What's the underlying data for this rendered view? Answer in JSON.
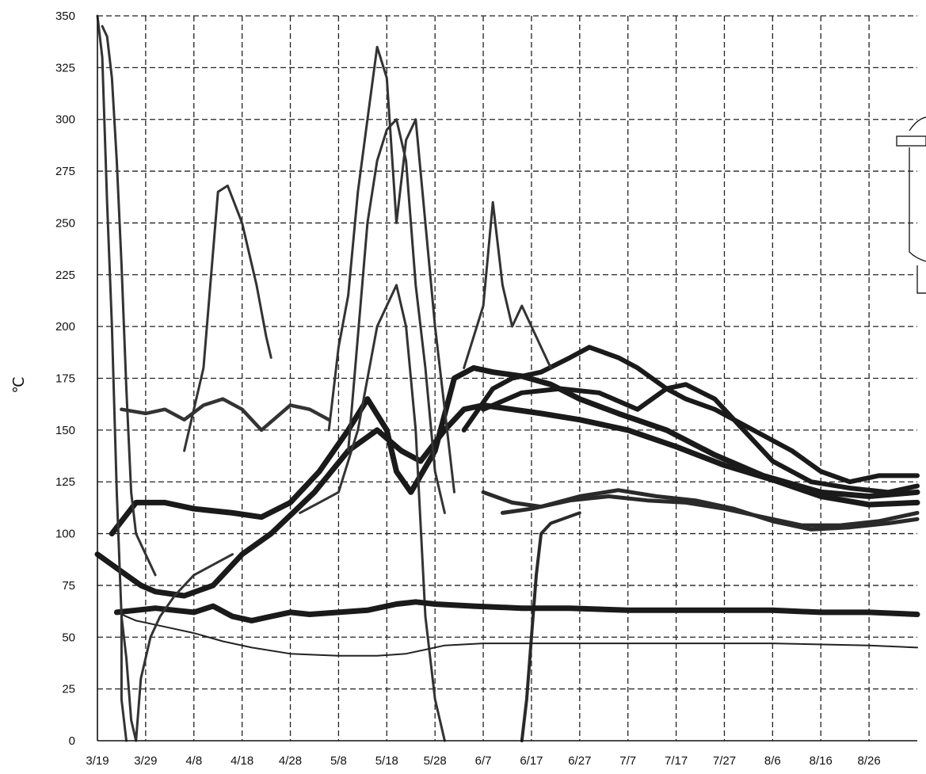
{
  "chart_data": {
    "type": "line",
    "ylabel": "℃",
    "ylim": [
      0,
      350
    ],
    "yticks": [
      0,
      25,
      50,
      75,
      100,
      125,
      150,
      175,
      200,
      225,
      250,
      275,
      300,
      325,
      350
    ],
    "x_tick_labels": [
      "3/19",
      "3/29",
      "4/8",
      "4/18",
      "4/28",
      "5/8",
      "5/18",
      "5/28",
      "6/7",
      "6/17",
      "6/27",
      "7/7",
      "7/17",
      "7/27",
      "8/6",
      "8/16",
      "8/26"
    ],
    "xlim_days": [
      0,
      170
    ],
    "grid": true,
    "series": [
      {
        "color": "#1a1a1a",
        "width": 7,
        "points": [
          [
            0,
            90
          ],
          [
            3,
            85
          ],
          [
            6,
            80
          ],
          [
            9,
            75
          ],
          [
            12,
            72
          ],
          [
            18,
            70
          ],
          [
            24,
            75
          ],
          [
            30,
            90
          ],
          [
            36,
            100
          ],
          [
            45,
            120
          ],
          [
            52,
            140
          ],
          [
            58,
            150
          ],
          [
            63,
            140
          ],
          [
            67,
            135
          ],
          [
            72,
            150
          ],
          [
            76,
            160
          ],
          [
            80,
            162
          ],
          [
            86,
            160
          ],
          [
            92,
            158
          ],
          [
            100,
            155
          ],
          [
            110,
            150
          ],
          [
            120,
            142
          ],
          [
            130,
            133
          ],
          [
            140,
            126
          ],
          [
            150,
            118
          ],
          [
            160,
            114
          ],
          [
            170,
            115
          ]
        ]
      },
      {
        "color": "#1a1a1a",
        "width": 7,
        "points": [
          [
            3,
            100
          ],
          [
            8,
            115
          ],
          [
            14,
            115
          ],
          [
            20,
            112
          ],
          [
            28,
            110
          ],
          [
            34,
            108
          ],
          [
            40,
            115
          ],
          [
            46,
            130
          ],
          [
            52,
            150
          ],
          [
            56,
            165
          ],
          [
            60,
            150
          ],
          [
            62,
            130
          ],
          [
            65,
            120
          ],
          [
            70,
            140
          ],
          [
            74,
            175
          ],
          [
            78,
            180
          ],
          [
            82,
            178
          ],
          [
            88,
            176
          ],
          [
            94,
            172
          ],
          [
            100,
            165
          ],
          [
            108,
            158
          ],
          [
            118,
            150
          ],
          [
            128,
            138
          ],
          [
            138,
            128
          ],
          [
            150,
            120
          ],
          [
            160,
            118
          ],
          [
            170,
            120
          ]
        ]
      },
      {
        "color": "#1a1a1a",
        "width": 6,
        "points": [
          [
            76,
            150
          ],
          [
            82,
            170
          ],
          [
            86,
            175
          ],
          [
            92,
            178
          ],
          [
            98,
            185
          ],
          [
            102,
            190
          ],
          [
            108,
            185
          ],
          [
            112,
            180
          ],
          [
            118,
            170
          ],
          [
            122,
            165
          ],
          [
            128,
            160
          ],
          [
            136,
            150
          ],
          [
            144,
            140
          ],
          [
            150,
            130
          ],
          [
            156,
            125
          ],
          [
            162,
            128
          ],
          [
            170,
            128
          ]
        ]
      },
      {
        "color": "#1a1a1a",
        "width": 6,
        "points": [
          [
            80,
            160
          ],
          [
            88,
            168
          ],
          [
            96,
            170
          ],
          [
            104,
            168
          ],
          [
            112,
            160
          ],
          [
            118,
            170
          ],
          [
            122,
            172
          ],
          [
            128,
            165
          ],
          [
            134,
            150
          ],
          [
            140,
            135
          ],
          [
            148,
            125
          ],
          [
            156,
            122
          ],
          [
            164,
            120
          ],
          [
            170,
            123
          ]
        ]
      },
      {
        "color": "#2a2a2a",
        "width": 5,
        "points": [
          [
            80,
            120
          ],
          [
            86,
            115
          ],
          [
            92,
            113
          ],
          [
            100,
            118
          ],
          [
            108,
            121
          ],
          [
            116,
            118
          ],
          [
            124,
            116
          ],
          [
            132,
            112
          ],
          [
            140,
            106
          ],
          [
            148,
            102
          ],
          [
            156,
            103
          ],
          [
            164,
            105
          ],
          [
            170,
            107
          ]
        ]
      },
      {
        "color": "#2a2a2a",
        "width": 5,
        "points": [
          [
            84,
            110
          ],
          [
            90,
            112
          ],
          [
            98,
            116
          ],
          [
            106,
            118
          ],
          [
            114,
            116
          ],
          [
            122,
            115
          ],
          [
            130,
            112
          ],
          [
            138,
            108
          ],
          [
            146,
            104
          ],
          [
            154,
            104
          ],
          [
            162,
            106
          ],
          [
            170,
            110
          ]
        ]
      },
      {
        "color": "#333333",
        "width": 4.5,
        "points": [
          [
            5,
            160
          ],
          [
            10,
            158
          ],
          [
            14,
            160
          ],
          [
            18,
            155
          ],
          [
            22,
            162
          ],
          [
            26,
            165
          ],
          [
            30,
            160
          ],
          [
            34,
            150
          ],
          [
            38,
            158
          ],
          [
            40,
            162
          ],
          [
            44,
            160
          ],
          [
            48,
            155
          ]
        ]
      },
      {
        "color": "#333333",
        "width": 3,
        "points": [
          [
            18,
            140
          ],
          [
            22,
            180
          ],
          [
            25,
            265
          ],
          [
            27,
            268
          ],
          [
            30,
            250
          ],
          [
            33,
            220
          ],
          [
            35,
            195
          ],
          [
            36,
            185
          ]
        ]
      },
      {
        "color": "#333333",
        "width": 3,
        "points": [
          [
            48,
            150
          ],
          [
            50,
            190
          ],
          [
            52,
            215
          ],
          [
            54,
            265
          ],
          [
            56,
            300
          ],
          [
            58,
            335
          ],
          [
            60,
            320
          ],
          [
            62,
            250
          ],
          [
            64,
            290
          ],
          [
            66,
            300
          ],
          [
            68,
            250
          ],
          [
            70,
            200
          ],
          [
            72,
            160
          ],
          [
            74,
            120
          ]
        ]
      },
      {
        "color": "#333333",
        "width": 3,
        "points": [
          [
            52,
            140
          ],
          [
            56,
            250
          ],
          [
            58,
            280
          ],
          [
            60,
            295
          ],
          [
            62,
            300
          ],
          [
            64,
            280
          ],
          [
            66,
            220
          ],
          [
            68,
            180
          ],
          [
            70,
            130
          ],
          [
            72,
            110
          ]
        ]
      },
      {
        "color": "#333333",
        "width": 3,
        "points": [
          [
            42,
            110
          ],
          [
            46,
            115
          ],
          [
            50,
            120
          ],
          [
            54,
            150
          ],
          [
            58,
            200
          ],
          [
            62,
            220
          ],
          [
            64,
            200
          ],
          [
            66,
            150
          ],
          [
            68,
            60
          ],
          [
            70,
            20
          ],
          [
            72,
            0
          ]
        ]
      },
      {
        "color": "#333333",
        "width": 3,
        "points": [
          [
            76,
            180
          ],
          [
            80,
            210
          ],
          [
            82,
            260
          ],
          [
            84,
            220
          ],
          [
            86,
            200
          ],
          [
            88,
            210
          ],
          [
            92,
            190
          ],
          [
            94,
            180
          ]
        ]
      },
      {
        "color": "#2a2a2a",
        "width": 4,
        "points": [
          [
            88,
            0
          ],
          [
            89,
            20
          ],
          [
            90,
            50
          ],
          [
            91,
            80
          ],
          [
            92,
            100
          ],
          [
            94,
            105
          ],
          [
            100,
            110
          ]
        ]
      },
      {
        "color": "#1a1a1a",
        "width": 7,
        "points": [
          [
            4,
            62
          ],
          [
            8,
            63
          ],
          [
            12,
            64
          ],
          [
            16,
            63
          ],
          [
            20,
            62
          ],
          [
            24,
            65
          ],
          [
            28,
            60
          ],
          [
            32,
            58
          ],
          [
            36,
            60
          ],
          [
            40,
            62
          ],
          [
            44,
            61
          ],
          [
            50,
            62
          ],
          [
            56,
            63
          ],
          [
            62,
            66
          ],
          [
            66,
            67
          ],
          [
            70,
            66
          ],
          [
            78,
            65
          ],
          [
            88,
            64
          ],
          [
            98,
            64
          ],
          [
            110,
            63
          ],
          [
            120,
            63
          ],
          [
            130,
            63
          ],
          [
            140,
            63
          ],
          [
            150,
            62
          ],
          [
            160,
            62
          ],
          [
            170,
            61
          ]
        ]
      },
      {
        "color": "#222222",
        "width": 2,
        "points": [
          [
            4,
            62
          ],
          [
            8,
            58
          ],
          [
            14,
            55
          ],
          [
            20,
            52
          ],
          [
            26,
            48
          ],
          [
            32,
            45
          ],
          [
            40,
            42
          ],
          [
            50,
            41
          ],
          [
            58,
            41
          ],
          [
            64,
            42
          ],
          [
            68,
            44
          ],
          [
            72,
            46
          ],
          [
            80,
            47
          ],
          [
            100,
            47
          ],
          [
            120,
            47
          ],
          [
            140,
            47
          ],
          [
            160,
            46
          ],
          [
            170,
            45
          ]
        ]
      },
      {
        "color": "#333333",
        "width": 3,
        "points": [
          [
            0,
            350
          ],
          [
            1,
            330
          ],
          [
            2,
            260
          ],
          [
            3,
            200
          ],
          [
            4,
            120
          ],
          [
            5,
            60
          ],
          [
            5,
            20
          ],
          [
            6,
            0
          ]
        ]
      },
      {
        "color": "#333333",
        "width": 3,
        "points": [
          [
            1,
            345
          ],
          [
            2,
            340
          ],
          [
            3,
            320
          ],
          [
            4,
            280
          ],
          [
            5,
            230
          ],
          [
            6,
            170
          ],
          [
            7,
            120
          ],
          [
            8,
            100
          ],
          [
            10,
            90
          ],
          [
            12,
            80
          ]
        ]
      },
      {
        "color": "#333333",
        "width": 3,
        "points": [
          [
            5,
            60
          ],
          [
            6,
            40
          ],
          [
            7,
            10
          ],
          [
            8,
            0
          ],
          [
            9,
            30
          ],
          [
            11,
            50
          ],
          [
            13,
            60
          ],
          [
            16,
            70
          ],
          [
            20,
            80
          ],
          [
            24,
            85
          ],
          [
            28,
            90
          ]
        ]
      }
    ]
  }
}
